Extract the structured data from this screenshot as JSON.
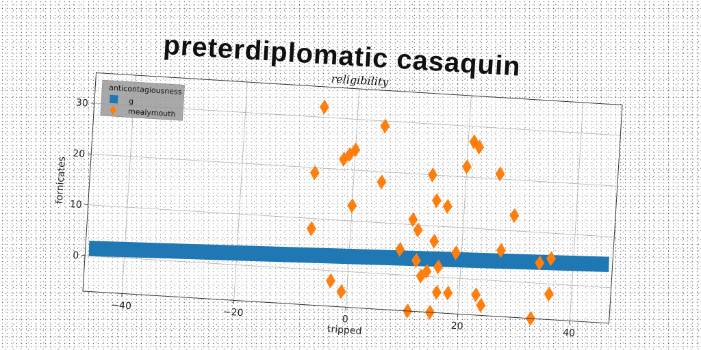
{
  "header": {
    "title": "preterdiplomatic casaquin"
  },
  "chart_data": {
    "type": "scatter",
    "title": "religibility",
    "xlabel": "tripped",
    "ylabel": "fornicates",
    "xlim": [
      -47,
      47
    ],
    "ylim": [
      -7,
      36
    ],
    "xticks": [
      -40,
      -20,
      0,
      20,
      40
    ],
    "yticks": [
      0,
      10,
      20,
      30
    ],
    "xtick_labels": [
      "−40",
      "−20",
      "0",
      "20",
      "40"
    ],
    "ytick_labels": [
      "0",
      "10",
      "20",
      "30"
    ],
    "grid": true,
    "legend": {
      "title": "anticontagiousness",
      "position": "top-left"
    },
    "series": [
      {
        "name": "g",
        "marker": "square",
        "color": "#1f77b4",
        "line_start": [
          -45,
          1.5
        ],
        "line_end": [
          45,
          4.5
        ],
        "thickness": 3
      },
      {
        "name": "mealymouth",
        "marker": "diamond",
        "color": "#ff7f0e",
        "points": [
          [
            -6,
            32
          ],
          [
            5,
            29
          ],
          [
            -7,
            19
          ],
          [
            -1,
            23
          ],
          [
            0,
            24
          ],
          [
            -2,
            22
          ],
          [
            5,
            18
          ],
          [
            0,
            13
          ],
          [
            -7,
            8
          ],
          [
            11,
            11
          ],
          [
            12,
            9
          ],
          [
            14,
            20
          ],
          [
            15,
            15
          ],
          [
            17,
            14
          ],
          [
            20,
            22
          ],
          [
            21,
            27
          ],
          [
            22,
            26
          ],
          [
            26,
            21
          ],
          [
            29,
            13
          ],
          [
            15,
            7
          ],
          [
            9,
            5
          ],
          [
            12,
            3
          ],
          [
            14,
            1
          ],
          [
            16,
            2
          ],
          [
            13,
            0
          ],
          [
            19,
            5
          ],
          [
            27,
            6
          ],
          [
            34,
            4
          ],
          [
            36,
            5
          ],
          [
            -3,
            -2
          ],
          [
            -1,
            -4
          ],
          [
            16,
            -3
          ],
          [
            18,
            -3
          ],
          [
            23,
            -3
          ],
          [
            24,
            -5
          ],
          [
            36,
            -2
          ],
          [
            11,
            -7
          ],
          [
            15,
            -7
          ],
          [
            33,
            -7
          ],
          [
            -2,
            -10
          ],
          [
            15,
            -10
          ],
          [
            16,
            -11
          ],
          [
            20,
            -11
          ]
        ]
      }
    ]
  }
}
